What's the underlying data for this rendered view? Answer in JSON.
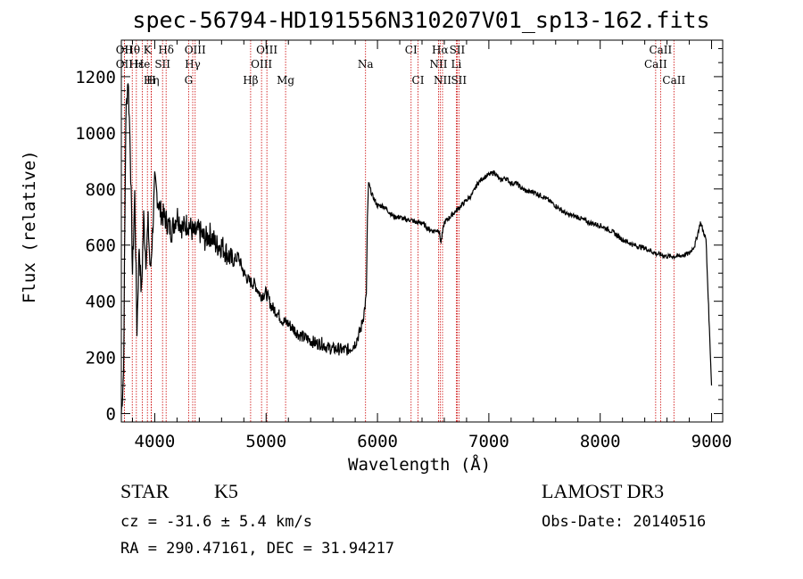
{
  "title": "spec-56794-HD191556N310207V01_sp13-162.fits",
  "chart_data": {
    "type": "line",
    "xlabel": "Wavelength (Å)",
    "ylabel": "Flux (relative)",
    "xlim": [
      3700,
      9100
    ],
    "ylim": [
      -30,
      1330
    ],
    "xticks": [
      4000,
      5000,
      6000,
      7000,
      8000,
      9000
    ],
    "yticks": [
      0,
      200,
      400,
      600,
      800,
      1000,
      1200
    ],
    "grid": false,
    "series": [
      {
        "x": [
          3700,
          3720,
          3740,
          3760,
          3780,
          3800,
          3820,
          3840,
          3860,
          3880,
          3900,
          3920,
          3940,
          3960,
          3980,
          4000,
          4050,
          4100,
          4150,
          4200,
          4250,
          4300,
          4350,
          4400,
          4450,
          4500,
          4550,
          4600,
          4650,
          4700,
          4750,
          4800,
          4850,
          4900,
          4950,
          5000,
          5050,
          5100,
          5150,
          5200,
          5250,
          5300,
          5350,
          5400,
          5450,
          5500,
          5550,
          5600,
          5650,
          5700,
          5750,
          5800,
          5850,
          5880,
          5900,
          5910,
          5920,
          5950,
          6000,
          6050,
          6100,
          6150,
          6200,
          6250,
          6300,
          6350,
          6400,
          6450,
          6500,
          6550,
          6570,
          6600,
          6650,
          6700,
          6750,
          6800,
          6850,
          6900,
          6950,
          7000,
          7050,
          7100,
          7150,
          7200,
          7250,
          7300,
          7350,
          7400,
          7450,
          7500,
          7600,
          7700,
          7800,
          7900,
          8000,
          8100,
          8200,
          8300,
          8400,
          8500,
          8600,
          8700,
          8800,
          8850,
          8900,
          8950,
          9000
        ],
        "y": [
          0,
          150,
          1050,
          1200,
          950,
          500,
          780,
          300,
          600,
          420,
          700,
          550,
          680,
          500,
          640,
          820,
          720,
          690,
          650,
          710,
          660,
          680,
          640,
          650,
          620,
          640,
          600,
          600,
          570,
          540,
          560,
          500,
          470,
          460,
          420,
          430,
          380,
          360,
          330,
          320,
          300,
          280,
          270,
          260,
          250,
          250,
          235,
          230,
          230,
          225,
          230,
          250,
          300,
          360,
          420,
          700,
          820,
          780,
          740,
          740,
          720,
          700,
          700,
          690,
          690,
          680,
          680,
          660,
          650,
          655,
          610,
          680,
          700,
          720,
          740,
          760,
          780,
          820,
          840,
          850,
          860,
          830,
          840,
          820,
          820,
          800,
          790,
          790,
          780,
          770,
          740,
          710,
          700,
          680,
          670,
          650,
          620,
          600,
          590,
          570,
          560,
          560,
          570,
          600,
          680,
          620,
          100
        ],
        "color": "#000000"
      }
    ],
    "line_markers": [
      {
        "label": "Hθ",
        "x": 3798
      },
      {
        "label": "K",
        "x": 3934
      },
      {
        "label": "Hδ",
        "x": 4102
      },
      {
        "label": "OIII",
        "x": 4363
      },
      {
        "label": "OIII",
        "x": 5007
      },
      {
        "label": "CI",
        "x": 6302
      },
      {
        "label": "Hα",
        "x": 6563
      },
      {
        "label": "SII",
        "x": 6716
      },
      {
        "label": "CaII",
        "x": 8542
      },
      {
        "label": "OII",
        "x": 3727
      },
      {
        "label": "He",
        "x": 3889
      },
      {
        "label": "SII",
        "x": 4070
      },
      {
        "label": "Hγ",
        "x": 4341
      },
      {
        "label": "OIII",
        "x": 4959
      },
      {
        "label": "Na",
        "x": 5893
      },
      {
        "label": "NII",
        "x": 6548
      },
      {
        "label": "Li",
        "x": 6708
      },
      {
        "label": "CaII",
        "x": 8498
      },
      {
        "label": "OII",
        "x": 3727
      },
      {
        "label": "Hε",
        "x": 3835
      },
      {
        "label": "Hη",
        "x": 3970
      },
      {
        "label": "H",
        "x": 3968
      },
      {
        "label": "G",
        "x": 4304
      },
      {
        "label": "Hβ",
        "x": 4861
      },
      {
        "label": "Mg",
        "x": 5175
      },
      {
        "label": "CI",
        "x": 6364
      },
      {
        "label": "NII",
        "x": 6584
      },
      {
        "label": "SII",
        "x": 6731
      },
      {
        "label": "CaII",
        "x": 8662
      }
    ],
    "marker_color": "#cc0000"
  },
  "info": {
    "object_class": "STAR",
    "subclass": "K5",
    "survey": "LAMOST DR3",
    "cz": "cz = -31.6 ± 5.4 km/s",
    "obs_date": "Obs-Date: 20140516",
    "coords": "RA = 290.47161, DEC =  31.94217"
  }
}
